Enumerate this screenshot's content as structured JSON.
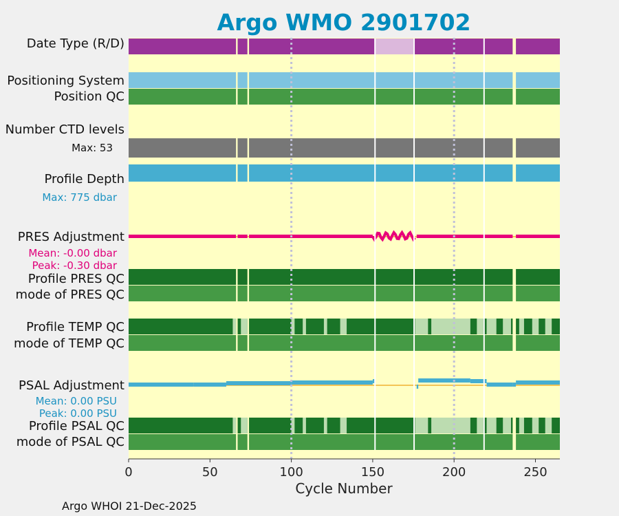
{
  "chart_data": {
    "type": "bar",
    "title": "Argo WMO 2901702",
    "xlabel": "Cycle Number",
    "xlim": [
      0,
      265
    ],
    "xticks": [
      "0",
      "50",
      "100",
      "150",
      "200",
      "250"
    ],
    "vlines": [
      100,
      200
    ],
    "footer": "Argo WHOI 21-Dec-2025",
    "gaps": [
      [
        66,
        67
      ],
      [
        73,
        74
      ],
      [
        236,
        238
      ]
    ],
    "rows": [
      {
        "name": "Date Type (R/D)",
        "color": "#993399",
        "segments_alt": [
          [
            151,
            175
          ],
          "#dcb8dc"
        ]
      },
      {
        "name": "Positioning System",
        "color": "#7ec4e0"
      },
      {
        "name": "Position QC",
        "color": "#459a45"
      },
      {
        "name": "Number CTD levels",
        "color": "#777777",
        "note": "Max: 53"
      },
      {
        "name": "Profile Depth",
        "color": "#46aed0",
        "note": "Max:  775 dbar"
      },
      {
        "name": "PRES Adjustment",
        "color": "#e8007a",
        "mean": "Mean: -0.00 dbar",
        "peak": "Peak: -0.30 dbar"
      },
      {
        "name": "Profile PRES QC",
        "color": "#1a7428"
      },
      {
        "name": "mode of PRES QC",
        "color": "#459a45"
      },
      {
        "name": "Profile TEMP QC",
        "color": "#1a7428",
        "light": "#bcdcb0"
      },
      {
        "name": "mode of TEMP QC",
        "color": "#459a45"
      },
      {
        "name": "PSAL Adjustment",
        "color": "#46aed0",
        "mean": "Mean: 0.00 PSU",
        "peak": "Peak: 0.00 PSU"
      },
      {
        "name": "Profile PSAL QC",
        "color": "#1a7428",
        "light": "#bcdcb0"
      },
      {
        "name": "mode of PSAL QC",
        "color": "#459a45"
      }
    ],
    "colors": {
      "title": "#008bbd",
      "panel": "#ffffc4",
      "pres_note": "#e0007a",
      "psal_note": "#1d93c2",
      "zero_line": "#f0b030"
    }
  }
}
